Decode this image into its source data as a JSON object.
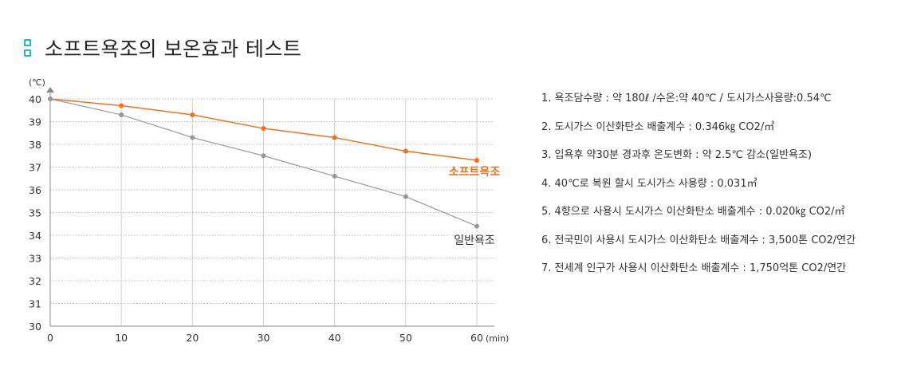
{
  "title": "소프트욕조의 보온효과 테스트",
  "chart_data": {
    "type": "line",
    "x": [
      0,
      10,
      20,
      30,
      40,
      50,
      60
    ],
    "series": [
      {
        "name": "소프트욕조",
        "color": "#f07020",
        "values": [
          40.0,
          39.7,
          39.3,
          38.7,
          38.3,
          37.7,
          37.3
        ]
      },
      {
        "name": "일반욕조",
        "color": "#999999",
        "values": [
          40.0,
          39.3,
          38.3,
          37.5,
          36.6,
          35.7,
          34.4
        ]
      }
    ],
    "ylim": [
      30,
      40
    ],
    "xlim": [
      0,
      60
    ],
    "yticks": [
      30,
      31,
      32,
      33,
      34,
      35,
      36,
      37,
      38,
      39,
      40
    ],
    "xticks": [
      0,
      10,
      20,
      30,
      40,
      50,
      60
    ],
    "y_unit": "(℃)",
    "x_unit": "(min)",
    "grid": "horizontal dotted + vertical solid"
  },
  "notes": [
    "1. 욕조담수량 : 약 180ℓ /수온:약 40℃ / 도시가스사용량:0.54℃",
    "2. 도시가스 이산화탄소 배출계수 : 0.346㎏ CO2/㎥",
    "3. 입욕후 약30분 경과후 온도변화 : 약 2.5℃ 감소(일반욕조)",
    "4. 40℃로 복원 할시 도시가스 사용량 : 0.031㎥",
    "5. 4향으로 사용시 도시가스 이산화탄소 배출계수 : 0.020㎏ CO2/㎥",
    "6. 전국민이 사용시 도시가스 이산화탄소 배출계수 : 3,500톤 CO2/연간",
    "7. 전세계 인구가 사용시 이산화탄소 배출계수 : 1,750억톤 CO2/연간"
  ]
}
